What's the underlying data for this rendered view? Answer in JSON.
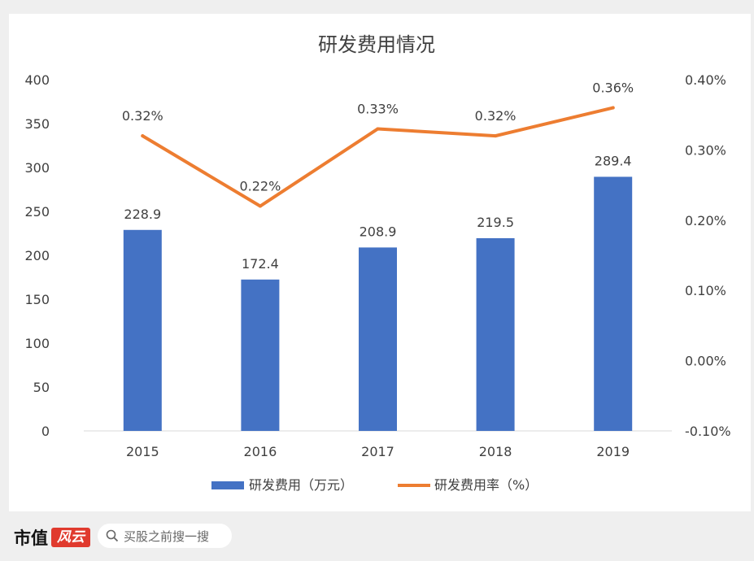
{
  "brand": {
    "name": "市值",
    "seal_text": "风云"
  },
  "search": {
    "placeholder": "买股之前搜一搜"
  },
  "chart_data": {
    "type": "bar+line",
    "title": "研发费用情况",
    "categories": [
      "2015",
      "2016",
      "2017",
      "2018",
      "2019"
    ],
    "series": [
      {
        "name": "研发费用（万元）",
        "type": "bar",
        "axis": "left",
        "values": [
          228.9,
          172.4,
          208.9,
          219.5,
          289.4
        ],
        "labels": [
          "228.9",
          "172.4",
          "208.9",
          "219.5",
          "289.4"
        ],
        "color": "#4472c4"
      },
      {
        "name": "研发费用率（%）",
        "type": "line",
        "axis": "right",
        "values": [
          0.32,
          0.22,
          0.33,
          0.32,
          0.36
        ],
        "labels": [
          "0.32%",
          "0.22%",
          "0.33%",
          "0.32%",
          "0.36%"
        ],
        "color": "#ed7d31"
      }
    ],
    "y_left": {
      "min": 0,
      "max": 400,
      "ticks": [
        "0",
        "50",
        "100",
        "150",
        "200",
        "250",
        "300",
        "350",
        "400"
      ]
    },
    "y_right": {
      "min": -0.1,
      "max": 0.4,
      "ticks": [
        "-0.10%",
        "0.00%",
        "0.10%",
        "0.20%",
        "0.30%",
        "0.40%"
      ]
    },
    "grid": false,
    "legend_position": "bottom"
  }
}
